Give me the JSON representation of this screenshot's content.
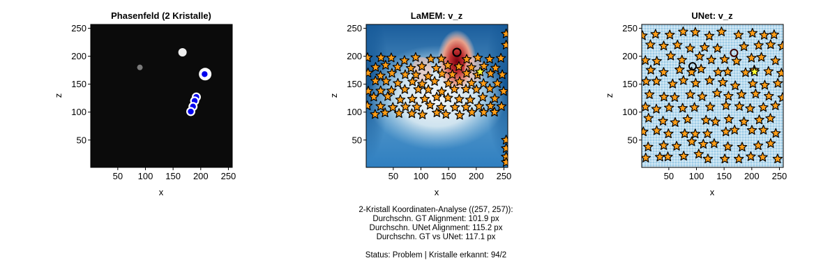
{
  "chart_data": [
    {
      "type": "heatmap",
      "title": "Phasenfeld (2 Kristalle)",
      "xlabel": "x",
      "ylabel": "z",
      "xlim": [
        1,
        257
      ],
      "ylim": [
        1,
        257
      ],
      "xticks": [
        "50",
        "100",
        "150",
        "200",
        "250"
      ],
      "yticks": [
        "50",
        "100",
        "150",
        "200",
        "250"
      ],
      "background": "#0b0b0b",
      "crystals": [
        {
          "x": 90,
          "y": 180,
          "r": 4,
          "color": "#7a7a7a"
        },
        {
          "x": 167,
          "y": 207,
          "r": 6,
          "color": "#eeeeee"
        },
        {
          "x": 208,
          "y": 168,
          "r": 9,
          "color": "#ffffff"
        }
      ],
      "markers": [
        {
          "x": 207,
          "y": 168
        },
        {
          "x": 192,
          "y": 127
        },
        {
          "x": 189,
          "y": 120
        },
        {
          "x": 186,
          "y": 110
        },
        {
          "x": 182,
          "y": 101
        }
      ],
      "marker_color": "#0000ee"
    },
    {
      "type": "heatmap",
      "title": "LaMEM: v_z",
      "xlabel": "x",
      "ylabel": "z",
      "xlim": [
        1,
        257
      ],
      "ylim": [
        1,
        257
      ],
      "xticks": [
        "50",
        "100",
        "150",
        "200",
        "250"
      ],
      "yticks": [
        "50",
        "100",
        "150",
        "200",
        "250"
      ],
      "colormap": [
        "#0b4f8f",
        "#2f7fc0",
        "#9ec8e2",
        "#f3f6f8",
        "#e8a08a",
        "#c03030",
        "#7a0010"
      ],
      "ring": {
        "x": 165,
        "y": 207
      },
      "highlight_star": {
        "x": 207,
        "y": 172,
        "color": "#ffff33"
      },
      "star_color": "#ff9d17"
    },
    {
      "type": "heatmap",
      "title": "UNet: v_z",
      "xlabel": "x",
      "ylabel": "z",
      "xlim": [
        1,
        257
      ],
      "ylim": [
        1,
        257
      ],
      "xticks": [
        "50",
        "100",
        "150",
        "200",
        "250"
      ],
      "yticks": [
        "50",
        "100",
        "150",
        "200",
        "250"
      ],
      "background": "#bcdcee",
      "rings": [
        {
          "x": 93,
          "y": 182,
          "color": "#000000"
        },
        {
          "x": 168,
          "y": 206,
          "color": "#3a0000"
        }
      ],
      "highlight_star": {
        "x": 205,
        "y": 172,
        "color": "#ffff33"
      },
      "star_color": "#ff9d17"
    }
  ],
  "summary": {
    "line1": "2-Kristall Koordinaten-Analyse ((257, 257)):",
    "line2": "Durchschn. GT Alignment: 101.9 px",
    "line3": "Durchschn. UNet Alignment: 115.2 px",
    "line4": "Durchschn. GT vs UNet: 117.1 px",
    "line5": "Status: Problem | Kristalle erkannt: 94/2"
  }
}
